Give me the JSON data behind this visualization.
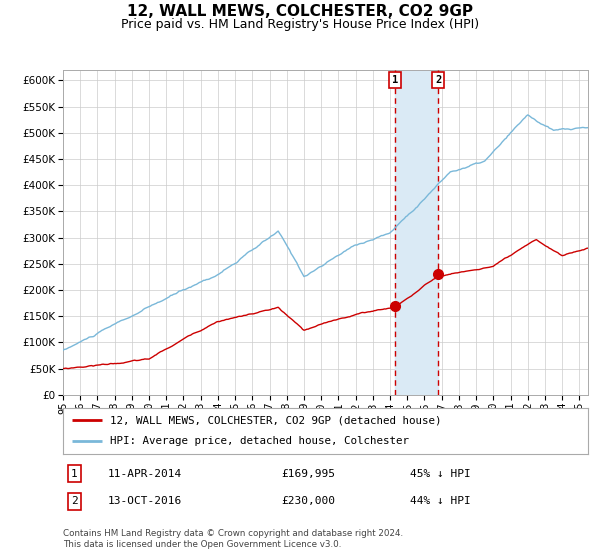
{
  "title": "12, WALL MEWS, COLCHESTER, CO2 9GP",
  "subtitle": "Price paid vs. HM Land Registry's House Price Index (HPI)",
  "ylim": [
    0,
    620000
  ],
  "yticks": [
    0,
    50000,
    100000,
    150000,
    200000,
    250000,
    300000,
    350000,
    400000,
    450000,
    500000,
    550000,
    600000
  ],
  "xlim_start": 1995.0,
  "xlim_end": 2025.5,
  "hpi_color": "#7ab8d9",
  "price_color": "#cc0000",
  "marker_color": "#cc0000",
  "vline_color": "#cc0000",
  "shade_color": "#daeaf5",
  "event1_x": 2014.27,
  "event1_y": 169995,
  "event2_x": 2016.79,
  "event2_y": 230000,
  "event1_label": "1",
  "event2_label": "2",
  "legend_line1": "12, WALL MEWS, COLCHESTER, CO2 9GP (detached house)",
  "legend_line2": "HPI: Average price, detached house, Colchester",
  "bg_color": "#ffffff",
  "grid_color": "#cccccc",
  "footnote": "Contains HM Land Registry data © Crown copyright and database right 2024.\nThis data is licensed under the Open Government Licence v3.0."
}
